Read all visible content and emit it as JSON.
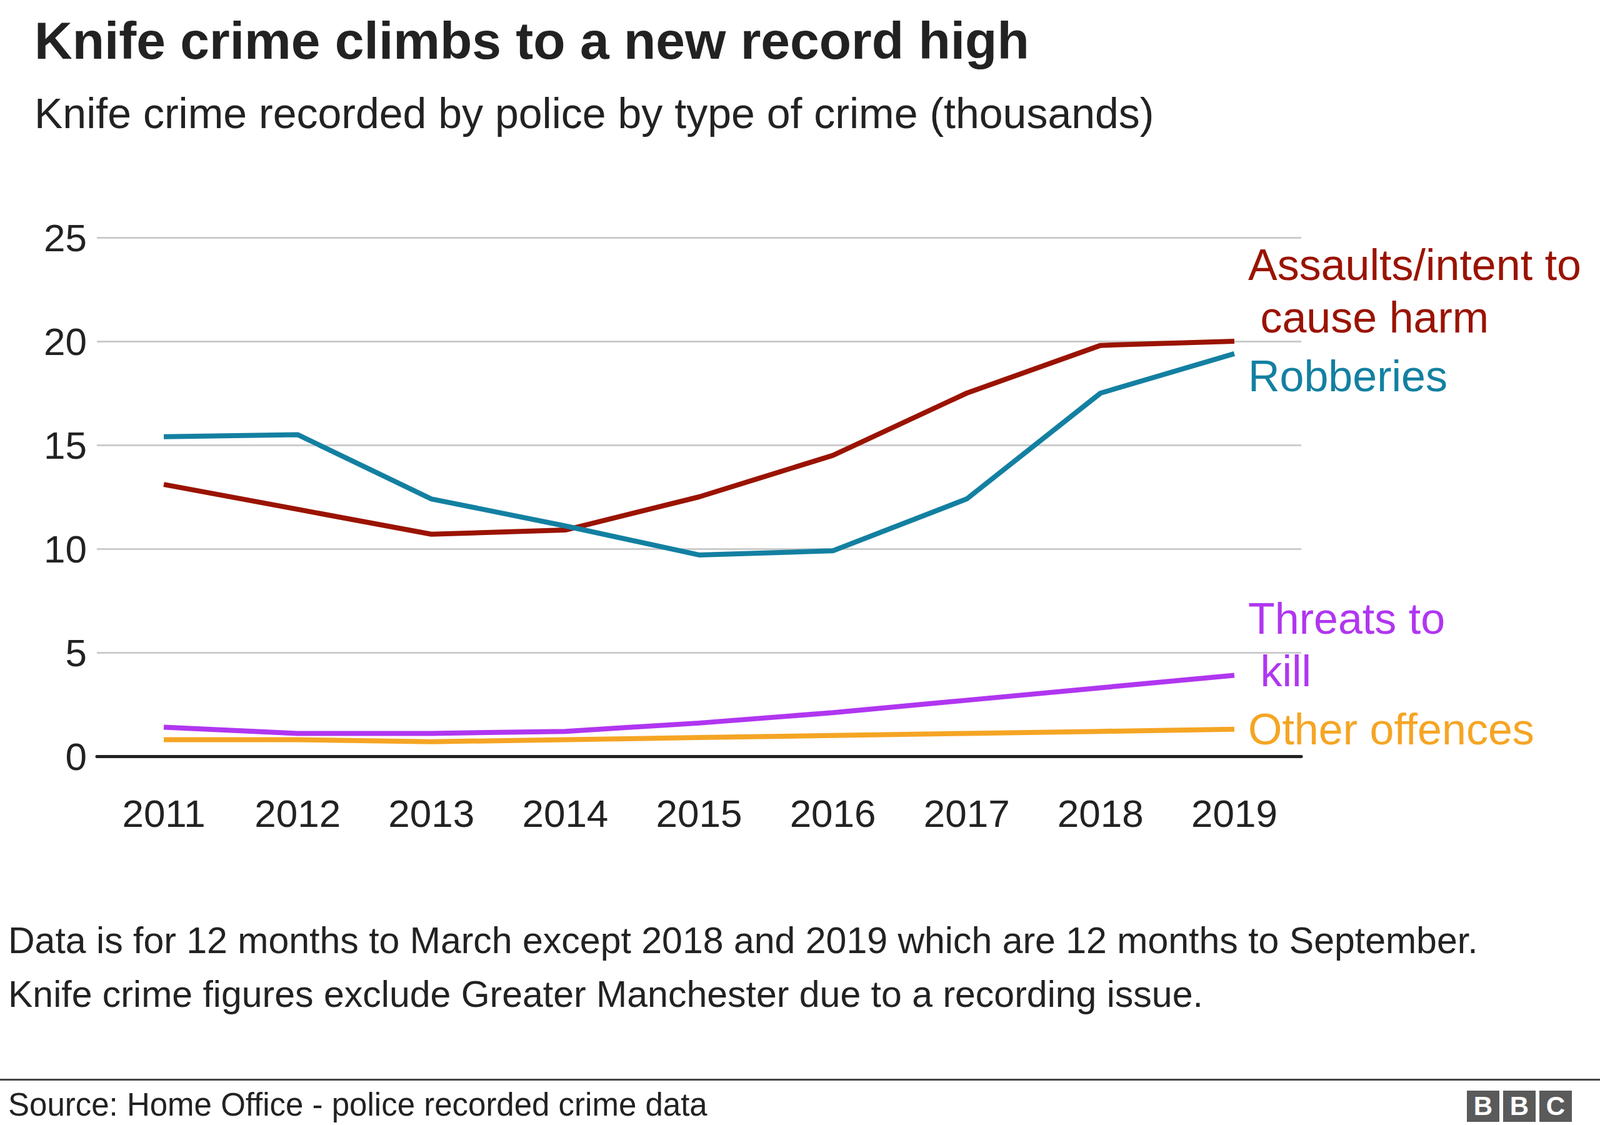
{
  "chart_data": {
    "type": "line",
    "title": "Knife crime climbs to a new record high",
    "subtitle": "Knife crime recorded by police by type of crime (thousands)",
    "categories": [
      "2011",
      "2012",
      "2013",
      "2014",
      "2015",
      "2016",
      "2017",
      "2018",
      "2019"
    ],
    "series": [
      {
        "name": "Assaults/intent to cause harm",
        "color": "#9a1300",
        "values": [
          13.1,
          11.9,
          10.7,
          10.9,
          12.5,
          14.5,
          17.5,
          19.8,
          20.0
        ]
      },
      {
        "name": "Robberies",
        "color": "#1380a1",
        "values": [
          15.4,
          15.5,
          12.4,
          11.1,
          9.7,
          9.9,
          12.4,
          17.5,
          19.4
        ]
      },
      {
        "name": "Threats to kill",
        "color": "#b036f0",
        "values": [
          1.4,
          1.1,
          1.1,
          1.2,
          1.6,
          2.1,
          2.7,
          3.3,
          3.9
        ]
      },
      {
        "name": "Other offences",
        "color": "#f5a524",
        "values": [
          0.8,
          0.8,
          0.7,
          0.8,
          0.9,
          1.0,
          1.1,
          1.2,
          1.3
        ]
      }
    ],
    "ylim": [
      0,
      25
    ],
    "yticks": [
      0,
      5,
      10,
      15,
      20,
      25
    ],
    "grid": true,
    "notes": [
      "Data is for 12 months to March except 2018 and 2019 which are 12 months to September.",
      "Knife crime figures exclude Greater Manchester due to a recording issue."
    ],
    "source": "Source: Home Office - police recorded crime data",
    "logo": "BBC"
  }
}
